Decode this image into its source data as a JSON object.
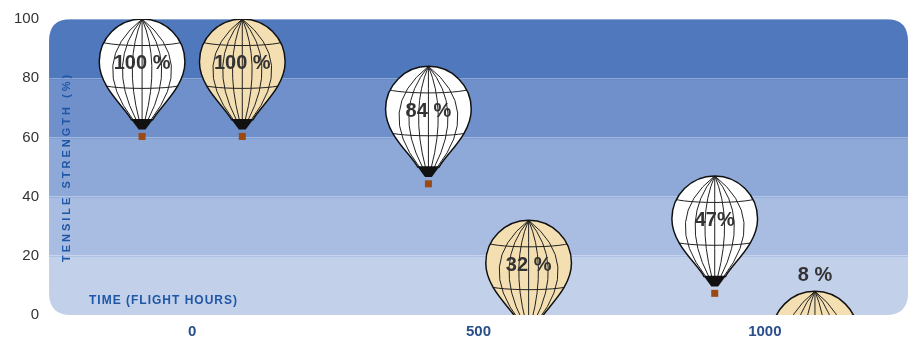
{
  "chart_data": {
    "type": "bar",
    "categories": [
      "0",
      "500",
      "1000"
    ],
    "x_label": "TIME (FLIGHT HOURS)",
    "y_label": "TENSILE STRENGTH (%)",
    "series": [
      {
        "color": "#ffffff",
        "values": [
          100,
          84,
          47
        ],
        "value_labels": [
          "100 %",
          "84 %",
          "47%"
        ]
      },
      {
        "color": "#f3dfb1",
        "values": [
          100,
          32,
          8
        ],
        "value_labels": [
          "100 %",
          "32 %",
          "8 %"
        ]
      }
    ],
    "ylim": [
      0,
      100
    ],
    "yticks": [
      0,
      20,
      40,
      60,
      80,
      100
    ],
    "grid": true,
    "data_labels": true
  }
}
